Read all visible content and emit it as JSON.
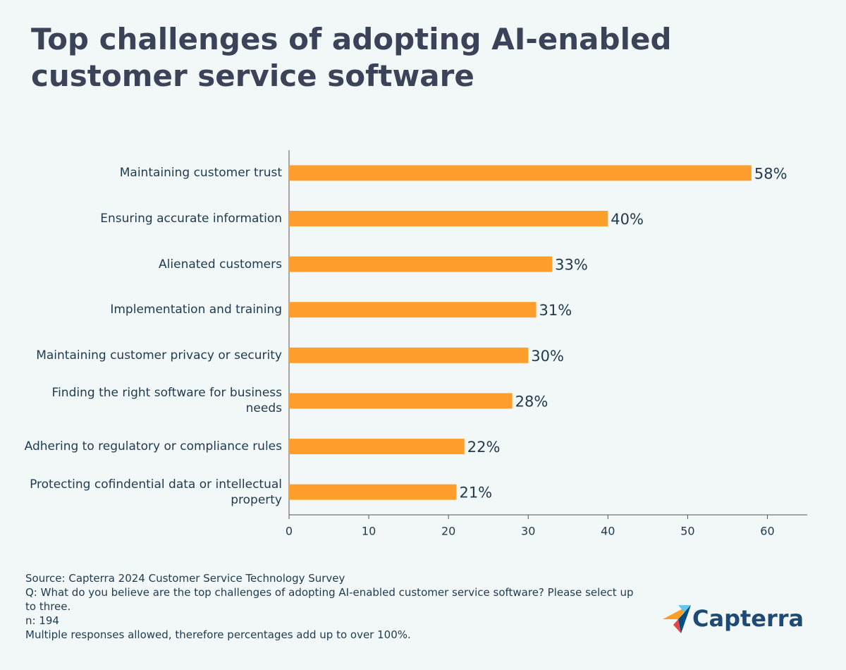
{
  "chart_data": {
    "type": "bar",
    "orientation": "horizontal",
    "title": "Top challenges of adopting AI-enabled customer service software",
    "categories": [
      "Maintaining customer trust",
      "Ensuring accurate information",
      "Alienated customers",
      "Implementation and training",
      "Maintaining customer privacy or security",
      "Finding the right software for business needs",
      "Adhering to regulatory or compliance rules",
      "Protecting cofindential data or intellectual property"
    ],
    "values": [
      58,
      40,
      33,
      31,
      30,
      28,
      22,
      21
    ],
    "value_labels": [
      "58%",
      "40%",
      "33%",
      "31%",
      "30%",
      "28%",
      "22%",
      "21%"
    ],
    "color": "#ff9e2c",
    "xlim": [
      0,
      65
    ],
    "xticks": [
      0,
      10,
      20,
      30,
      40,
      50,
      60
    ],
    "grid": false
  },
  "footer": {
    "notes": [
      "Source: Capterra 2024 Customer Service Technology Survey",
      "Q: What do you believe are the top challenges of adopting AI-enabled customer service software? Please select up to three.",
      "n: 194",
      "Multiple responses allowed, therefore percentages add up to over 100%."
    ],
    "logo": "Capterra"
  }
}
